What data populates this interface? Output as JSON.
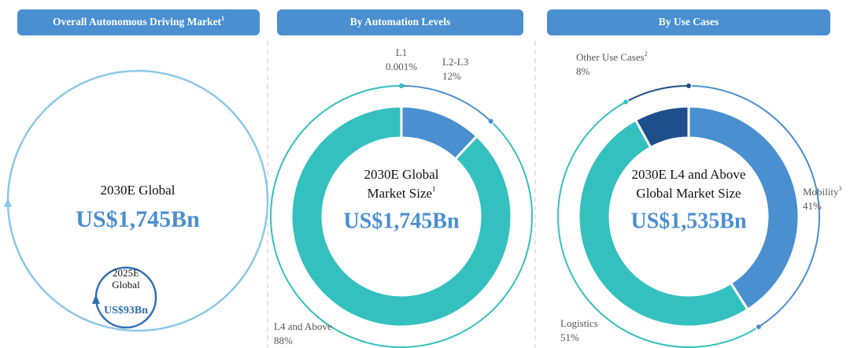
{
  "chart_data": [
    {
      "type": "nested-circles",
      "title": "Overall Autonomous Driving Market",
      "title_note": "1",
      "labels": [
        [
          "2030E Global"
        ],
        [
          "2025E",
          "Global"
        ]
      ],
      "values": [
        1745,
        93
      ],
      "value_labels": [
        "US$1,745Bn",
        "US$93Bn"
      ],
      "colors": [
        "#8cc8ea",
        "#2f6fb0"
      ]
    },
    {
      "type": "donut",
      "title": "By Automation Levels",
      "categories": [
        "L1",
        "L2-L3",
        "L4 and Above"
      ],
      "category_notes": [
        null,
        null,
        null
      ],
      "values": [
        0.001,
        12,
        88
      ],
      "value_labels": [
        "0.001%",
        "12%",
        "88%"
      ],
      "colors": [
        "#1f4e8c",
        "#4a8fd0",
        "#35c0c0"
      ],
      "center_lines": [
        "2030E Global",
        "Market Size"
      ],
      "center_note": "1",
      "center_value": "US$1,745Bn"
    },
    {
      "type": "donut",
      "title": "By Use Cases",
      "categories": [
        "Mobility",
        "Logistics",
        "Other Use Cases"
      ],
      "category_notes": [
        "3",
        null,
        "2"
      ],
      "values": [
        41,
        51,
        8
      ],
      "value_labels": [
        "41%",
        "51%",
        "8%"
      ],
      "colors": [
        "#4a8fd0",
        "#35c0c0",
        "#1f4e8c"
      ],
      "center_lines": [
        "2030E L4 and Above",
        "Global Market Size"
      ],
      "center_value": "US$1,535Bn"
    }
  ]
}
